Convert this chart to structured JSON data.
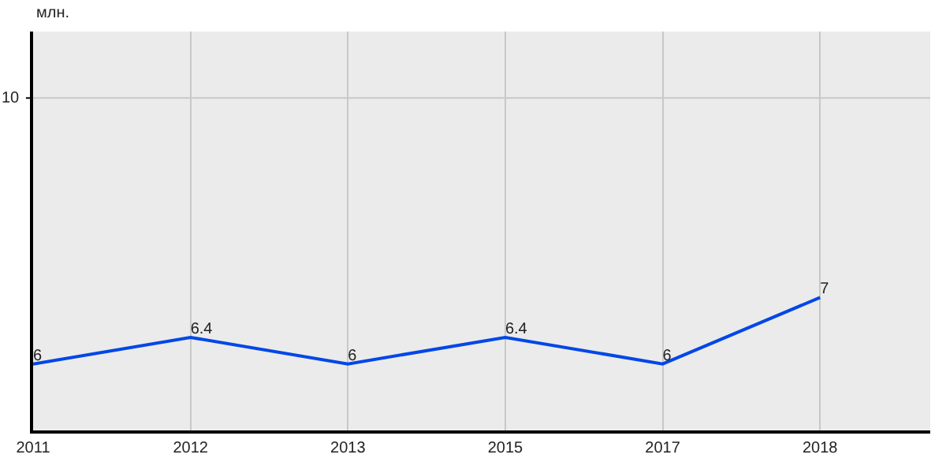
{
  "chart_data": {
    "type": "line",
    "ylabel": "млн.",
    "categories": [
      "2011",
      "2012",
      "2013",
      "2015",
      "2017",
      "2018"
    ],
    "series": [
      {
        "color": "#0047e6",
        "values": [
          6,
          6.4,
          6,
          6.4,
          6,
          7
        ]
      }
    ],
    "ylim": [
      5,
      11
    ],
    "ref_lines": [
      {
        "axis": "y",
        "value": 10,
        "label": "10",
        "color": "#c8c8c8"
      }
    ],
    "grid": "x",
    "data_labels": true,
    "marker": "none",
    "line_style": "solid",
    "legend": false
  }
}
